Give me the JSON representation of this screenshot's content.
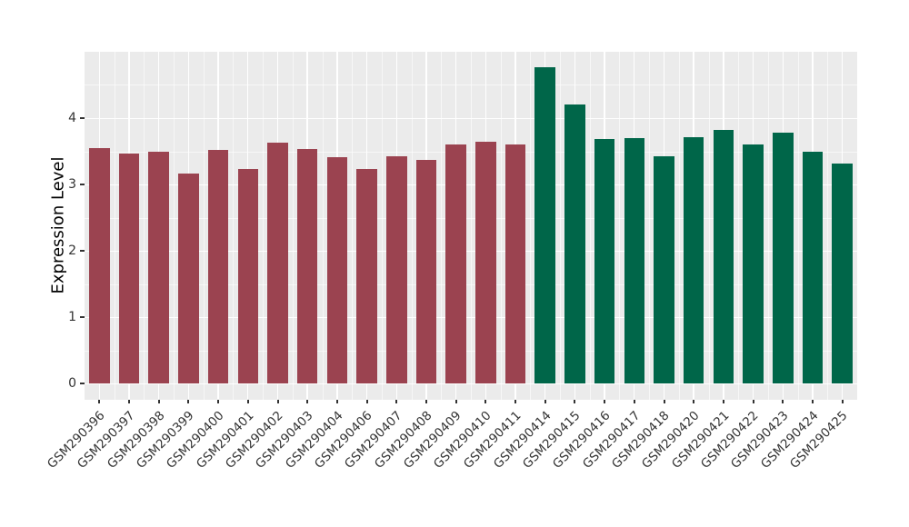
{
  "style": {
    "figure_background": "#ffffff",
    "panel_background": "#ebebeb",
    "grid_color": "#ffffff",
    "axis_text_color": "#333333",
    "group_red": "#9b4350",
    "group_green": "#006649"
  },
  "chart_data": {
    "type": "bar",
    "title": "",
    "xlabel": "",
    "ylabel": "Expression Level",
    "ylim": [
      0,
      5
    ],
    "yticks": [
      0,
      1,
      2,
      3,
      4
    ],
    "grid": true,
    "legend_position": "none",
    "x_tick_rotation_deg": 45,
    "categories": [
      "GSM290396",
      "GSM290397",
      "GSM290398",
      "GSM290399",
      "GSM290400",
      "GSM290401",
      "GSM290402",
      "GSM290403",
      "GSM290404",
      "GSM290406",
      "GSM290407",
      "GSM290408",
      "GSM290409",
      "GSM290410",
      "GSM290411",
      "GSM290414",
      "GSM290415",
      "GSM290416",
      "GSM290417",
      "GSM290418",
      "GSM290420",
      "GSM290421",
      "GSM290422",
      "GSM290423",
      "GSM290424",
      "GSM290425"
    ],
    "values": [
      3.55,
      3.46,
      3.5,
      3.17,
      3.52,
      3.23,
      3.63,
      3.54,
      3.41,
      3.24,
      3.42,
      3.37,
      3.61,
      3.64,
      3.6,
      4.77,
      4.2,
      3.69,
      3.7,
      3.42,
      3.71,
      3.82,
      3.61,
      3.78,
      3.5,
      3.32
    ],
    "bar_colors": [
      "#9b4350",
      "#9b4350",
      "#9b4350",
      "#9b4350",
      "#9b4350",
      "#9b4350",
      "#9b4350",
      "#9b4350",
      "#9b4350",
      "#9b4350",
      "#9b4350",
      "#9b4350",
      "#9b4350",
      "#9b4350",
      "#9b4350",
      "#006649",
      "#006649",
      "#006649",
      "#006649",
      "#006649",
      "#006649",
      "#006649",
      "#006649",
      "#006649",
      "#006649",
      "#006649"
    ]
  }
}
